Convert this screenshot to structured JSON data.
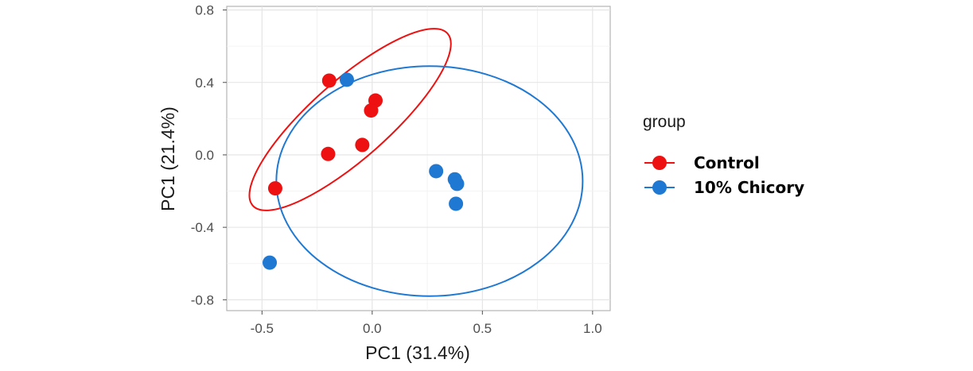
{
  "chart_data": {
    "type": "scatter",
    "xlabel": "PC1 (31.4%)",
    "ylabel": "PC1 (21.4%)",
    "xlim": [
      -0.66,
      1.08
    ],
    "ylim": [
      -0.86,
      0.82
    ],
    "x_ticks": [
      -0.5,
      0.0,
      0.5,
      1.0
    ],
    "x_tick_labels": [
      "-0.5",
      "0.0",
      "0.5",
      "1.0"
    ],
    "y_ticks": [
      0.8,
      0.4,
      0.0,
      -0.4,
      -0.8
    ],
    "y_tick_labels": [
      "0.8",
      "0.4",
      "0.0",
      "-0.4",
      "-0.8"
    ],
    "grid": true,
    "legend": {
      "title": "group",
      "position": "right"
    },
    "series": [
      {
        "name": "Control",
        "color": "#ee1111",
        "points": [
          {
            "x": -0.195,
            "y": 0.41
          },
          {
            "x": 0.015,
            "y": 0.3
          },
          {
            "x": -0.005,
            "y": 0.245
          },
          {
            "x": -0.045,
            "y": 0.055
          },
          {
            "x": -0.2,
            "y": 0.005
          },
          {
            "x": -0.44,
            "y": -0.185
          }
        ],
        "ellipse": {
          "cx": -0.1,
          "cy": 0.195,
          "rx": 0.59,
          "ry": 0.215,
          "angle_deg": 41.5
        }
      },
      {
        "name": "10% Chicory",
        "color": "#1f78d1",
        "points": [
          {
            "x": -0.115,
            "y": 0.415
          },
          {
            "x": 0.29,
            "y": -0.09
          },
          {
            "x": 0.375,
            "y": -0.135
          },
          {
            "x": 0.385,
            "y": -0.16
          },
          {
            "x": 0.38,
            "y": -0.27
          },
          {
            "x": -0.465,
            "y": -0.595
          }
        ],
        "ellipse": {
          "cx": 0.26,
          "cy": -0.145,
          "rx": 0.695,
          "ry": 0.635,
          "angle_deg": 0
        }
      }
    ]
  }
}
